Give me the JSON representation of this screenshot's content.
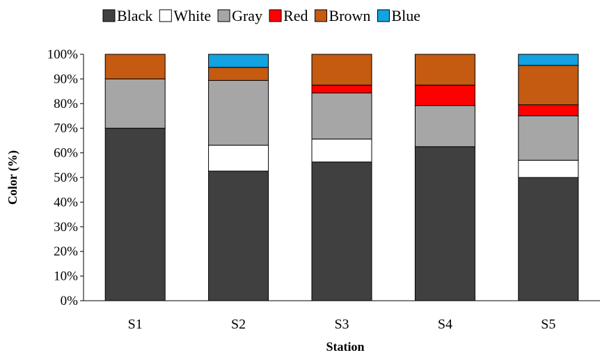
{
  "chart_data": {
    "type": "bar",
    "stacked": true,
    "title": "",
    "xlabel": "Station",
    "ylabel": "Color (%)",
    "ylim": [
      0,
      100
    ],
    "yticks": [
      "0%",
      "10%",
      "20%",
      "30%",
      "40%",
      "50%",
      "60%",
      "70%",
      "80%",
      "90%",
      "100%"
    ],
    "categories": [
      "S1",
      "S2",
      "S3",
      "S4",
      "S5"
    ],
    "legend_position": "top",
    "grid": false,
    "series": [
      {
        "name": "Black",
        "color": "#404040",
        "values": [
          70,
          52.6,
          56.3,
          62.5,
          50
        ]
      },
      {
        "name": "White",
        "color": "#ffffff",
        "values": [
          0,
          10.5,
          9.3,
          0,
          7
        ]
      },
      {
        "name": "Gray",
        "color": "#a6a6a6",
        "values": [
          20,
          26.3,
          18.7,
          16.7,
          18
        ]
      },
      {
        "name": "Red",
        "color": "#ff0000",
        "values": [
          0,
          0,
          3.2,
          8.3,
          4.5
        ]
      },
      {
        "name": "Brown",
        "color": "#c55a11",
        "values": [
          10,
          5.3,
          12.5,
          12.5,
          16
        ]
      },
      {
        "name": "Blue",
        "color": "#13a3e0",
        "values": [
          0,
          5.3,
          0,
          0,
          4.5
        ]
      }
    ]
  }
}
